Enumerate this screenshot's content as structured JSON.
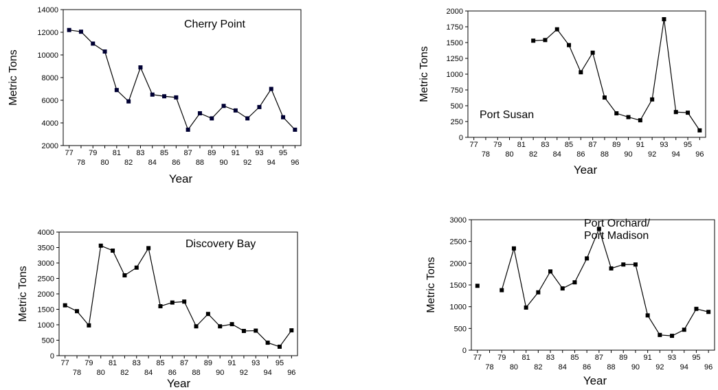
{
  "chart_data": [
    {
      "type": "line",
      "annotation": "Cherry Point",
      "xlabel": "Year",
      "ylabel": "Metric Tons",
      "ylim": [
        2000,
        14000
      ],
      "yticks": [
        2000,
        4000,
        6000,
        8000,
        10000,
        12000,
        14000
      ],
      "x": [
        "77",
        "78",
        "79",
        "80",
        "81",
        "82",
        "83",
        "84",
        "85",
        "86",
        "87",
        "88",
        "89",
        "90",
        "91",
        "92",
        "93",
        "94",
        "95",
        "96"
      ],
      "values": [
        12200,
        12050,
        11000,
        10300,
        6900,
        5900,
        8900,
        6500,
        6350,
        6250,
        3400,
        4850,
        4400,
        5500,
        5100,
        4400,
        5400,
        7000,
        4500,
        3400
      ],
      "grid": false,
      "color": "#000033"
    },
    {
      "type": "line",
      "annotation": "Port Susan",
      "xlabel": "Year",
      "ylabel": "Metric Tons",
      "ylim": [
        0,
        2000
      ],
      "yticks": [
        0,
        250,
        500,
        750,
        1000,
        1250,
        1500,
        1750,
        2000
      ],
      "x": [
        "77",
        "78",
        "79",
        "80",
        "81",
        "82",
        "83",
        "84",
        "85",
        "86",
        "87",
        "88",
        "89",
        "90",
        "91",
        "92",
        "93",
        "94",
        "95",
        "96"
      ],
      "values": [
        null,
        null,
        null,
        null,
        null,
        1530,
        1540,
        1710,
        1460,
        1030,
        1340,
        630,
        380,
        320,
        270,
        600,
        1870,
        400,
        390,
        110
      ],
      "grid": false,
      "color": "#000000"
    },
    {
      "type": "line",
      "annotation": "Discovery Bay",
      "xlabel": "Year",
      "ylabel": "Metric Tons",
      "ylim": [
        0,
        4000
      ],
      "yticks": [
        0,
        500,
        1000,
        1500,
        2000,
        2500,
        3000,
        3500,
        4000
      ],
      "x": [
        "77",
        "78",
        "79",
        "80",
        "81",
        "82",
        "83",
        "84",
        "85",
        "86",
        "87",
        "88",
        "89",
        "90",
        "91",
        "92",
        "93",
        "94",
        "95",
        "96"
      ],
      "values": [
        1630,
        1440,
        980,
        3560,
        3400,
        2600,
        2850,
        3480,
        1600,
        1720,
        1750,
        950,
        1350,
        950,
        1020,
        800,
        810,
        420,
        290,
        820
      ],
      "grid": false,
      "color": "#000000"
    },
    {
      "type": "line",
      "annotation": "Port Orchard/\nPort Madison",
      "xlabel": "Year",
      "ylabel": "Metric Tons",
      "ylim": [
        0,
        3000
      ],
      "yticks": [
        0,
        500,
        1000,
        1500,
        2000,
        2500,
        3000
      ],
      "x": [
        "77",
        "78",
        "79",
        "80",
        "81",
        "82",
        "83",
        "84",
        "85",
        "86",
        "87",
        "88",
        "89",
        "90",
        "91",
        "92",
        "93",
        "94",
        "95",
        "96"
      ],
      "values": [
        1480,
        null,
        1380,
        2340,
        980,
        1330,
        1810,
        1420,
        1560,
        2110,
        2790,
        1880,
        1970,
        1970,
        800,
        350,
        330,
        470,
        950,
        880
      ],
      "grid": false,
      "color": "#000000"
    }
  ]
}
